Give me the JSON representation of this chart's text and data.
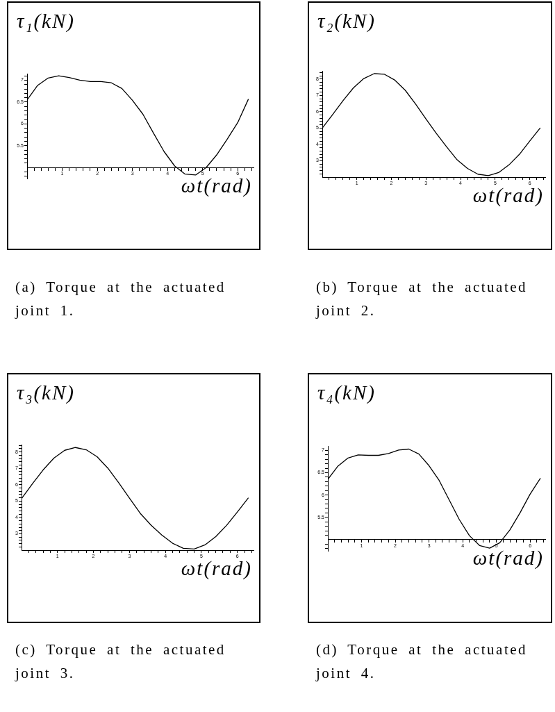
{
  "chart_data": [
    {
      "type": "line",
      "ylabel": "τ₁(kN)",
      "xlabel": "ωt(rad)",
      "annotations": [
        "(a) Torque at the actuated joint 1."
      ],
      "x": [
        0,
        0.3,
        0.6,
        0.9,
        1.2,
        1.5,
        1.8,
        2.1,
        2.4,
        2.7,
        3.0,
        3.3,
        3.6,
        3.9,
        4.2,
        4.5,
        4.8,
        5.1,
        5.4,
        5.7,
        6.0,
        6.3
      ],
      "series": [
        {
          "color": "#000000",
          "values": [
            6.55,
            6.88,
            7.05,
            7.1,
            7.06,
            7.0,
            6.97,
            6.97,
            6.94,
            6.81,
            6.54,
            6.22,
            5.79,
            5.37,
            5.04,
            4.85,
            4.83,
            5.0,
            5.29,
            5.65,
            6.03,
            6.56
          ]
        }
      ],
      "xlim": [
        0,
        6.45
      ],
      "ylim": [
        4.75,
        7.15
      ],
      "xticks": [
        {
          "value": 0.2,
          "label": null
        },
        {
          "value": 0.4,
          "label": null
        },
        {
          "value": 0.6,
          "label": null
        },
        {
          "value": 0.8,
          "label": null
        },
        1,
        {
          "value": 1.2,
          "label": null
        },
        {
          "value": 1.4,
          "label": null
        },
        {
          "value": 1.6,
          "label": null
        },
        {
          "value": 1.8,
          "label": null
        },
        2,
        {
          "value": 2.2,
          "label": null
        },
        {
          "value": 2.4,
          "label": null
        },
        {
          "value": 2.6,
          "label": null
        },
        {
          "value": 2.8,
          "label": null
        },
        3,
        {
          "value": 3.2,
          "label": null
        },
        {
          "value": 3.4,
          "label": null
        },
        {
          "value": 3.6,
          "label": null
        },
        {
          "value": 3.8,
          "label": null
        },
        4,
        {
          "value": 4.2,
          "label": null
        },
        {
          "value": 4.4,
          "label": null
        },
        {
          "value": 4.6,
          "label": null
        },
        {
          "value": 4.8,
          "label": null
        },
        5,
        {
          "value": 5.2,
          "label": null
        },
        {
          "value": 5.4,
          "label": null
        },
        {
          "value": 5.6,
          "label": null
        },
        {
          "value": 5.8,
          "label": null
        },
        6,
        {
          "value": 6.2,
          "label": null
        },
        {
          "value": 6.4,
          "label": null
        }
      ],
      "yticks": [
        {
          "value": 4.8,
          "label": null
        },
        {
          "value": 4.9,
          "label": null
        },
        {
          "value": 5.1,
          "label": null
        },
        {
          "value": 5.2,
          "label": null
        },
        {
          "value": 5.3,
          "label": null
        },
        {
          "value": 5.4,
          "label": null
        },
        5.5,
        {
          "value": 5.6,
          "label": null
        },
        {
          "value": 5.7,
          "label": null
        },
        {
          "value": 5.8,
          "label": null
        },
        {
          "value": 5.9,
          "label": null
        },
        6,
        {
          "value": 6.1,
          "label": null
        },
        {
          "value": 6.2,
          "label": null
        },
        {
          "value": 6.3,
          "label": null
        },
        {
          "value": 6.4,
          "label": null
        },
        6.5,
        {
          "value": 6.6,
          "label": null
        },
        {
          "value": 6.7,
          "label": null
        },
        {
          "value": 6.8,
          "label": null
        },
        {
          "value": 6.9,
          "label": null
        },
        7,
        {
          "value": 7.1,
          "label": null
        }
      ]
    },
    {
      "type": "line",
      "ylabel": "τ₂(kN)",
      "xlabel": "ωt(rad)",
      "annotations": [
        "(b) Torque at the actuated joint 2."
      ],
      "x": [
        0,
        0.3,
        0.6,
        0.9,
        1.2,
        1.5,
        1.8,
        2.1,
        2.4,
        2.7,
        3.0,
        3.3,
        3.6,
        3.9,
        4.2,
        4.5,
        4.8,
        5.1,
        5.4,
        5.7,
        6.0,
        6.3
      ],
      "series": [
        {
          "color": "#000000",
          "values": [
            5.0,
            5.83,
            6.68,
            7.46,
            8.03,
            8.33,
            8.29,
            7.93,
            7.31,
            6.47,
            5.55,
            4.67,
            3.84,
            3.06,
            2.53,
            2.18,
            2.09,
            2.28,
            2.75,
            3.39,
            4.2,
            5.0
          ]
        }
      ],
      "xlim": [
        0,
        6.45
      ],
      "ylim": [
        2,
        8.5
      ],
      "xticks": [
        {
          "value": 0.2,
          "label": null
        },
        {
          "value": 0.4,
          "label": null
        },
        {
          "value": 0.6,
          "label": null
        },
        {
          "value": 0.8,
          "label": null
        },
        1,
        {
          "value": 1.2,
          "label": null
        },
        {
          "value": 1.4,
          "label": null
        },
        {
          "value": 1.6,
          "label": null
        },
        {
          "value": 1.8,
          "label": null
        },
        2,
        {
          "value": 2.2,
          "label": null
        },
        {
          "value": 2.4,
          "label": null
        },
        {
          "value": 2.6,
          "label": null
        },
        {
          "value": 2.8,
          "label": null
        },
        3,
        {
          "value": 3.2,
          "label": null
        },
        {
          "value": 3.4,
          "label": null
        },
        {
          "value": 3.6,
          "label": null
        },
        {
          "value": 3.8,
          "label": null
        },
        4,
        {
          "value": 4.2,
          "label": null
        },
        {
          "value": 4.4,
          "label": null
        },
        {
          "value": 4.6,
          "label": null
        },
        {
          "value": 4.8,
          "label": null
        },
        5,
        {
          "value": 5.2,
          "label": null
        },
        {
          "value": 5.4,
          "label": null
        },
        {
          "value": 5.6,
          "label": null
        },
        {
          "value": 5.8,
          "label": null
        },
        6,
        {
          "value": 6.2,
          "label": null
        },
        {
          "value": 6.4,
          "label": null
        }
      ],
      "yticks": [
        {
          "value": 2.2,
          "label": null
        },
        {
          "value": 2.4,
          "label": null
        },
        {
          "value": 2.6,
          "label": null
        },
        {
          "value": 2.8,
          "label": null
        },
        3,
        {
          "value": 3.2,
          "label": null
        },
        {
          "value": 3.4,
          "label": null
        },
        {
          "value": 3.6,
          "label": null
        },
        {
          "value": 3.8,
          "label": null
        },
        4,
        {
          "value": 4.2,
          "label": null
        },
        {
          "value": 4.4,
          "label": null
        },
        {
          "value": 4.6,
          "label": null
        },
        {
          "value": 4.8,
          "label": null
        },
        5,
        {
          "value": 5.2,
          "label": null
        },
        {
          "value": 5.4,
          "label": null
        },
        {
          "value": 5.6,
          "label": null
        },
        {
          "value": 5.8,
          "label": null
        },
        6,
        {
          "value": 6.2,
          "label": null
        },
        {
          "value": 6.4,
          "label": null
        },
        {
          "value": 6.6,
          "label": null
        },
        {
          "value": 6.8,
          "label": null
        },
        7,
        {
          "value": 7.2,
          "label": null
        },
        {
          "value": 7.4,
          "label": null
        },
        {
          "value": 7.6,
          "label": null
        },
        {
          "value": 7.8,
          "label": null
        },
        8,
        {
          "value": 8.2,
          "label": null
        },
        {
          "value": 8.4,
          "label": null
        }
      ]
    },
    {
      "type": "line",
      "ylabel": "τ₃(kN)",
      "xlabel": "ωt(rad)",
      "annotations": [
        "(c) Torque at the actuated joint 3."
      ],
      "x": [
        0,
        0.3,
        0.6,
        0.9,
        1.2,
        1.5,
        1.8,
        2.1,
        2.4,
        2.7,
        3.0,
        3.3,
        3.6,
        3.9,
        4.2,
        4.5,
        4.8,
        5.1,
        5.4,
        5.7,
        6.0,
        6.3
      ],
      "series": [
        {
          "color": "#000000",
          "values": [
            5.15,
            6.05,
            6.9,
            7.62,
            8.1,
            8.27,
            8.13,
            7.71,
            7.01,
            6.12,
            5.18,
            4.25,
            3.53,
            2.92,
            2.42,
            2.11,
            2.07,
            2.32,
            2.83,
            3.51,
            4.33,
            5.18
          ]
        }
      ],
      "xlim": [
        0,
        6.45
      ],
      "ylim": [
        2,
        8.45
      ],
      "xticks": [
        {
          "value": 0.2,
          "label": null
        },
        {
          "value": 0.4,
          "label": null
        },
        {
          "value": 0.6,
          "label": null
        },
        {
          "value": 0.8,
          "label": null
        },
        1,
        {
          "value": 1.2,
          "label": null
        },
        {
          "value": 1.4,
          "label": null
        },
        {
          "value": 1.6,
          "label": null
        },
        {
          "value": 1.8,
          "label": null
        },
        2,
        {
          "value": 2.2,
          "label": null
        },
        {
          "value": 2.4,
          "label": null
        },
        {
          "value": 2.6,
          "label": null
        },
        {
          "value": 2.8,
          "label": null
        },
        3,
        {
          "value": 3.2,
          "label": null
        },
        {
          "value": 3.4,
          "label": null
        },
        {
          "value": 3.6,
          "label": null
        },
        {
          "value": 3.8,
          "label": null
        },
        4,
        {
          "value": 4.2,
          "label": null
        },
        {
          "value": 4.4,
          "label": null
        },
        {
          "value": 4.6,
          "label": null
        },
        {
          "value": 4.8,
          "label": null
        },
        5,
        {
          "value": 5.2,
          "label": null
        },
        {
          "value": 5.4,
          "label": null
        },
        {
          "value": 5.6,
          "label": null
        },
        {
          "value": 5.8,
          "label": null
        },
        6,
        {
          "value": 6.2,
          "label": null
        },
        {
          "value": 6.4,
          "label": null
        }
      ],
      "yticks": [
        {
          "value": 2.2,
          "label": null
        },
        {
          "value": 2.4,
          "label": null
        },
        {
          "value": 2.6,
          "label": null
        },
        {
          "value": 2.8,
          "label": null
        },
        3,
        {
          "value": 3.2,
          "label": null
        },
        {
          "value": 3.4,
          "label": null
        },
        {
          "value": 3.6,
          "label": null
        },
        {
          "value": 3.8,
          "label": null
        },
        4,
        {
          "value": 4.2,
          "label": null
        },
        {
          "value": 4.4,
          "label": null
        },
        {
          "value": 4.6,
          "label": null
        },
        {
          "value": 4.8,
          "label": null
        },
        5,
        {
          "value": 5.2,
          "label": null
        },
        {
          "value": 5.4,
          "label": null
        },
        {
          "value": 5.6,
          "label": null
        },
        {
          "value": 5.8,
          "label": null
        },
        6,
        {
          "value": 6.2,
          "label": null
        },
        {
          "value": 6.4,
          "label": null
        },
        {
          "value": 6.6,
          "label": null
        },
        {
          "value": 6.8,
          "label": null
        },
        7,
        {
          "value": 7.2,
          "label": null
        },
        {
          "value": 7.4,
          "label": null
        },
        {
          "value": 7.6,
          "label": null
        },
        {
          "value": 7.8,
          "label": null
        },
        8,
        {
          "value": 8.2,
          "label": null
        },
        {
          "value": 8.4,
          "label": null
        }
      ]
    },
    {
      "type": "line",
      "ylabel": "τ₄(kN)",
      "xlabel": "ωt(rad)",
      "annotations": [
        "(d) Torque at the actuated joint 4."
      ],
      "x": [
        0,
        0.3,
        0.6,
        0.9,
        1.2,
        1.5,
        1.8,
        2.1,
        2.4,
        2.7,
        3.0,
        3.3,
        3.6,
        3.9,
        4.2,
        4.5,
        4.8,
        5.1,
        5.4,
        5.7,
        6.0,
        6.3
      ],
      "series": [
        {
          "color": "#000000",
          "values": [
            6.35,
            6.65,
            6.83,
            6.9,
            6.89,
            6.89,
            6.93,
            7.01,
            7.03,
            6.92,
            6.66,
            6.33,
            5.89,
            5.45,
            5.09,
            4.87,
            4.81,
            4.93,
            5.22,
            5.6,
            6.02,
            6.37
          ]
        }
      ],
      "xlim": [
        0,
        6.45
      ],
      "ylim": [
        4.75,
        7.1
      ],
      "xticks": [
        {
          "value": 0.2,
          "label": null
        },
        {
          "value": 0.4,
          "label": null
        },
        {
          "value": 0.6,
          "label": null
        },
        {
          "value": 0.8,
          "label": null
        },
        1,
        {
          "value": 1.2,
          "label": null
        },
        {
          "value": 1.4,
          "label": null
        },
        {
          "value": 1.6,
          "label": null
        },
        {
          "value": 1.8,
          "label": null
        },
        2,
        {
          "value": 2.2,
          "label": null
        },
        {
          "value": 2.4,
          "label": null
        },
        {
          "value": 2.6,
          "label": null
        },
        {
          "value": 2.8,
          "label": null
        },
        3,
        {
          "value": 3.2,
          "label": null
        },
        {
          "value": 3.4,
          "label": null
        },
        {
          "value": 3.6,
          "label": null
        },
        {
          "value": 3.8,
          "label": null
        },
        4,
        {
          "value": 4.2,
          "label": null
        },
        {
          "value": 4.4,
          "label": null
        },
        {
          "value": 4.6,
          "label": null
        },
        {
          "value": 4.8,
          "label": null
        },
        5,
        {
          "value": 5.2,
          "label": null
        },
        {
          "value": 5.4,
          "label": null
        },
        {
          "value": 5.6,
          "label": null
        },
        {
          "value": 5.8,
          "label": null
        },
        6,
        {
          "value": 6.2,
          "label": null
        },
        {
          "value": 6.4,
          "label": null
        }
      ],
      "yticks": [
        {
          "value": 4.8,
          "label": null
        },
        {
          "value": 4.9,
          "label": null
        },
        {
          "value": 5.1,
          "label": null
        },
        {
          "value": 5.2,
          "label": null
        },
        {
          "value": 5.3,
          "label": null
        },
        {
          "value": 5.4,
          "label": null
        },
        5.5,
        {
          "value": 5.6,
          "label": null
        },
        {
          "value": 5.7,
          "label": null
        },
        {
          "value": 5.8,
          "label": null
        },
        {
          "value": 5.9,
          "label": null
        },
        6,
        {
          "value": 6.1,
          "label": null
        },
        {
          "value": 6.2,
          "label": null
        },
        {
          "value": 6.3,
          "label": null
        },
        {
          "value": 6.4,
          "label": null
        },
        6.5,
        {
          "value": 6.6,
          "label": null
        },
        {
          "value": 6.7,
          "label": null
        },
        {
          "value": 6.8,
          "label": null
        },
        {
          "value": 6.9,
          "label": null
        },
        7
      ]
    }
  ]
}
